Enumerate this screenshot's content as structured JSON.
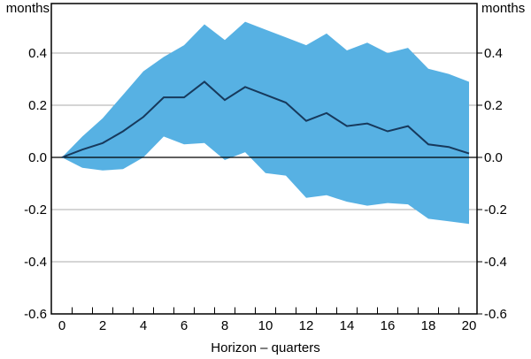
{
  "labels": {
    "unit_left": "months",
    "unit_right": "months"
  },
  "colors": {
    "band": "#57B1E3",
    "line": "#17395C",
    "grid": "#ABABAB",
    "zero_line": "#000000",
    "axis": "#000000",
    "text": "#000000",
    "background": "#FFFFFF"
  },
  "chart_data": {
    "type": "area",
    "title": "",
    "xlabel": "Horizon – quarters",
    "ylabel_left": "months",
    "ylabel_right": "months",
    "x": [
      0,
      1,
      2,
      3,
      4,
      5,
      6,
      7,
      8,
      9,
      10,
      11,
      12,
      13,
      14,
      15,
      16,
      17,
      18,
      19,
      20
    ],
    "series": [
      {
        "name": "point estimate",
        "role": "line",
        "values": [
          0.0,
          0.03,
          0.055,
          0.1,
          0.155,
          0.23,
          0.23,
          0.29,
          0.22,
          0.27,
          0.24,
          0.21,
          0.14,
          0.17,
          0.12,
          0.13,
          0.1,
          0.12,
          0.05,
          0.04,
          0.015
        ]
      },
      {
        "name": "confidence band upper",
        "role": "band-upper",
        "values": [
          0.0,
          0.08,
          0.15,
          0.24,
          0.33,
          0.385,
          0.43,
          0.51,
          0.45,
          0.52,
          0.49,
          0.46,
          0.43,
          0.475,
          0.41,
          0.44,
          0.4,
          0.42,
          0.34,
          0.32,
          0.29
        ]
      },
      {
        "name": "confidence band lower",
        "role": "band-lower",
        "values": [
          0.0,
          -0.04,
          -0.05,
          -0.045,
          0.0,
          0.08,
          0.05,
          0.055,
          -0.01,
          0.02,
          -0.06,
          -0.07,
          -0.155,
          -0.145,
          -0.17,
          -0.185,
          -0.175,
          -0.18,
          -0.235,
          -0.245,
          -0.255
        ]
      }
    ],
    "xlim": [
      -0.52,
      20.4
    ],
    "ylim": [
      -0.6,
      0.59
    ],
    "yticks": [
      0.4,
      0.2,
      0.0,
      -0.2,
      -0.4,
      -0.6
    ],
    "ytick_labels": [
      "0.4",
      "0.2",
      "0.0",
      "-0.2",
      "-0.4",
      "-0.6"
    ],
    "xtick_positions": [
      0,
      2,
      4,
      6,
      8,
      10,
      12,
      14,
      16,
      18,
      20
    ],
    "xtick_labels": [
      "0",
      "2",
      "4",
      "6",
      "8",
      "10",
      "12",
      "14",
      "16",
      "18",
      "20"
    ],
    "gridlines_at": [
      0.4,
      0.2,
      -0.2,
      -0.4
    ],
    "zero_line_at": 0.0,
    "grid": true,
    "legend_position": "none"
  }
}
